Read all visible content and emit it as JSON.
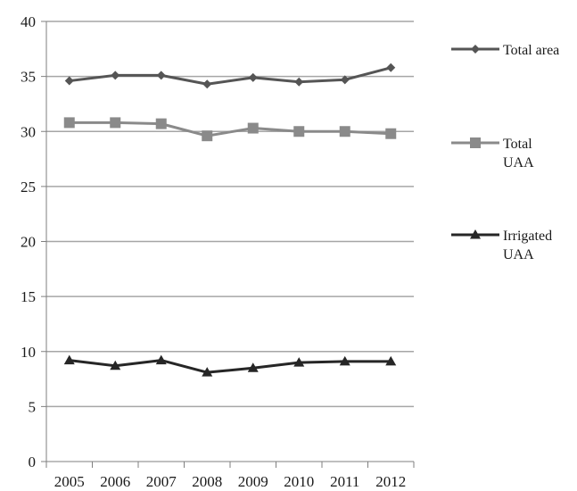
{
  "chart_data": {
    "type": "line",
    "title": "",
    "xlabel": "",
    "ylabel": "",
    "ylim": [
      0,
      40
    ],
    "yticks": [
      0,
      5,
      10,
      15,
      20,
      25,
      30,
      35,
      40
    ],
    "grid": "horizontal",
    "legend_position": "right",
    "categories": [
      "2005",
      "2006",
      "2007",
      "2008",
      "2009",
      "2010",
      "2011",
      "2012"
    ],
    "series": [
      {
        "name": "Total area",
        "legend_lines": [
          "Total area"
        ],
        "marker": "diamond",
        "color": "#555555",
        "values": [
          34.6,
          35.1,
          35.1,
          34.3,
          34.9,
          34.5,
          34.7,
          35.8
        ]
      },
      {
        "name": "Total UAA",
        "legend_lines": [
          "Total",
          "UAA"
        ],
        "marker": "square",
        "color": "#8a8a8a",
        "values": [
          30.8,
          30.8,
          30.7,
          29.6,
          30.3,
          30.0,
          30.0,
          29.8
        ]
      },
      {
        "name": "Irrigated UAA",
        "legend_lines": [
          "Irrigated",
          "UAA"
        ],
        "marker": "triangle",
        "color": "#262626",
        "values": [
          9.2,
          8.7,
          9.2,
          8.1,
          8.5,
          9.0,
          9.1,
          9.1
        ]
      }
    ]
  }
}
